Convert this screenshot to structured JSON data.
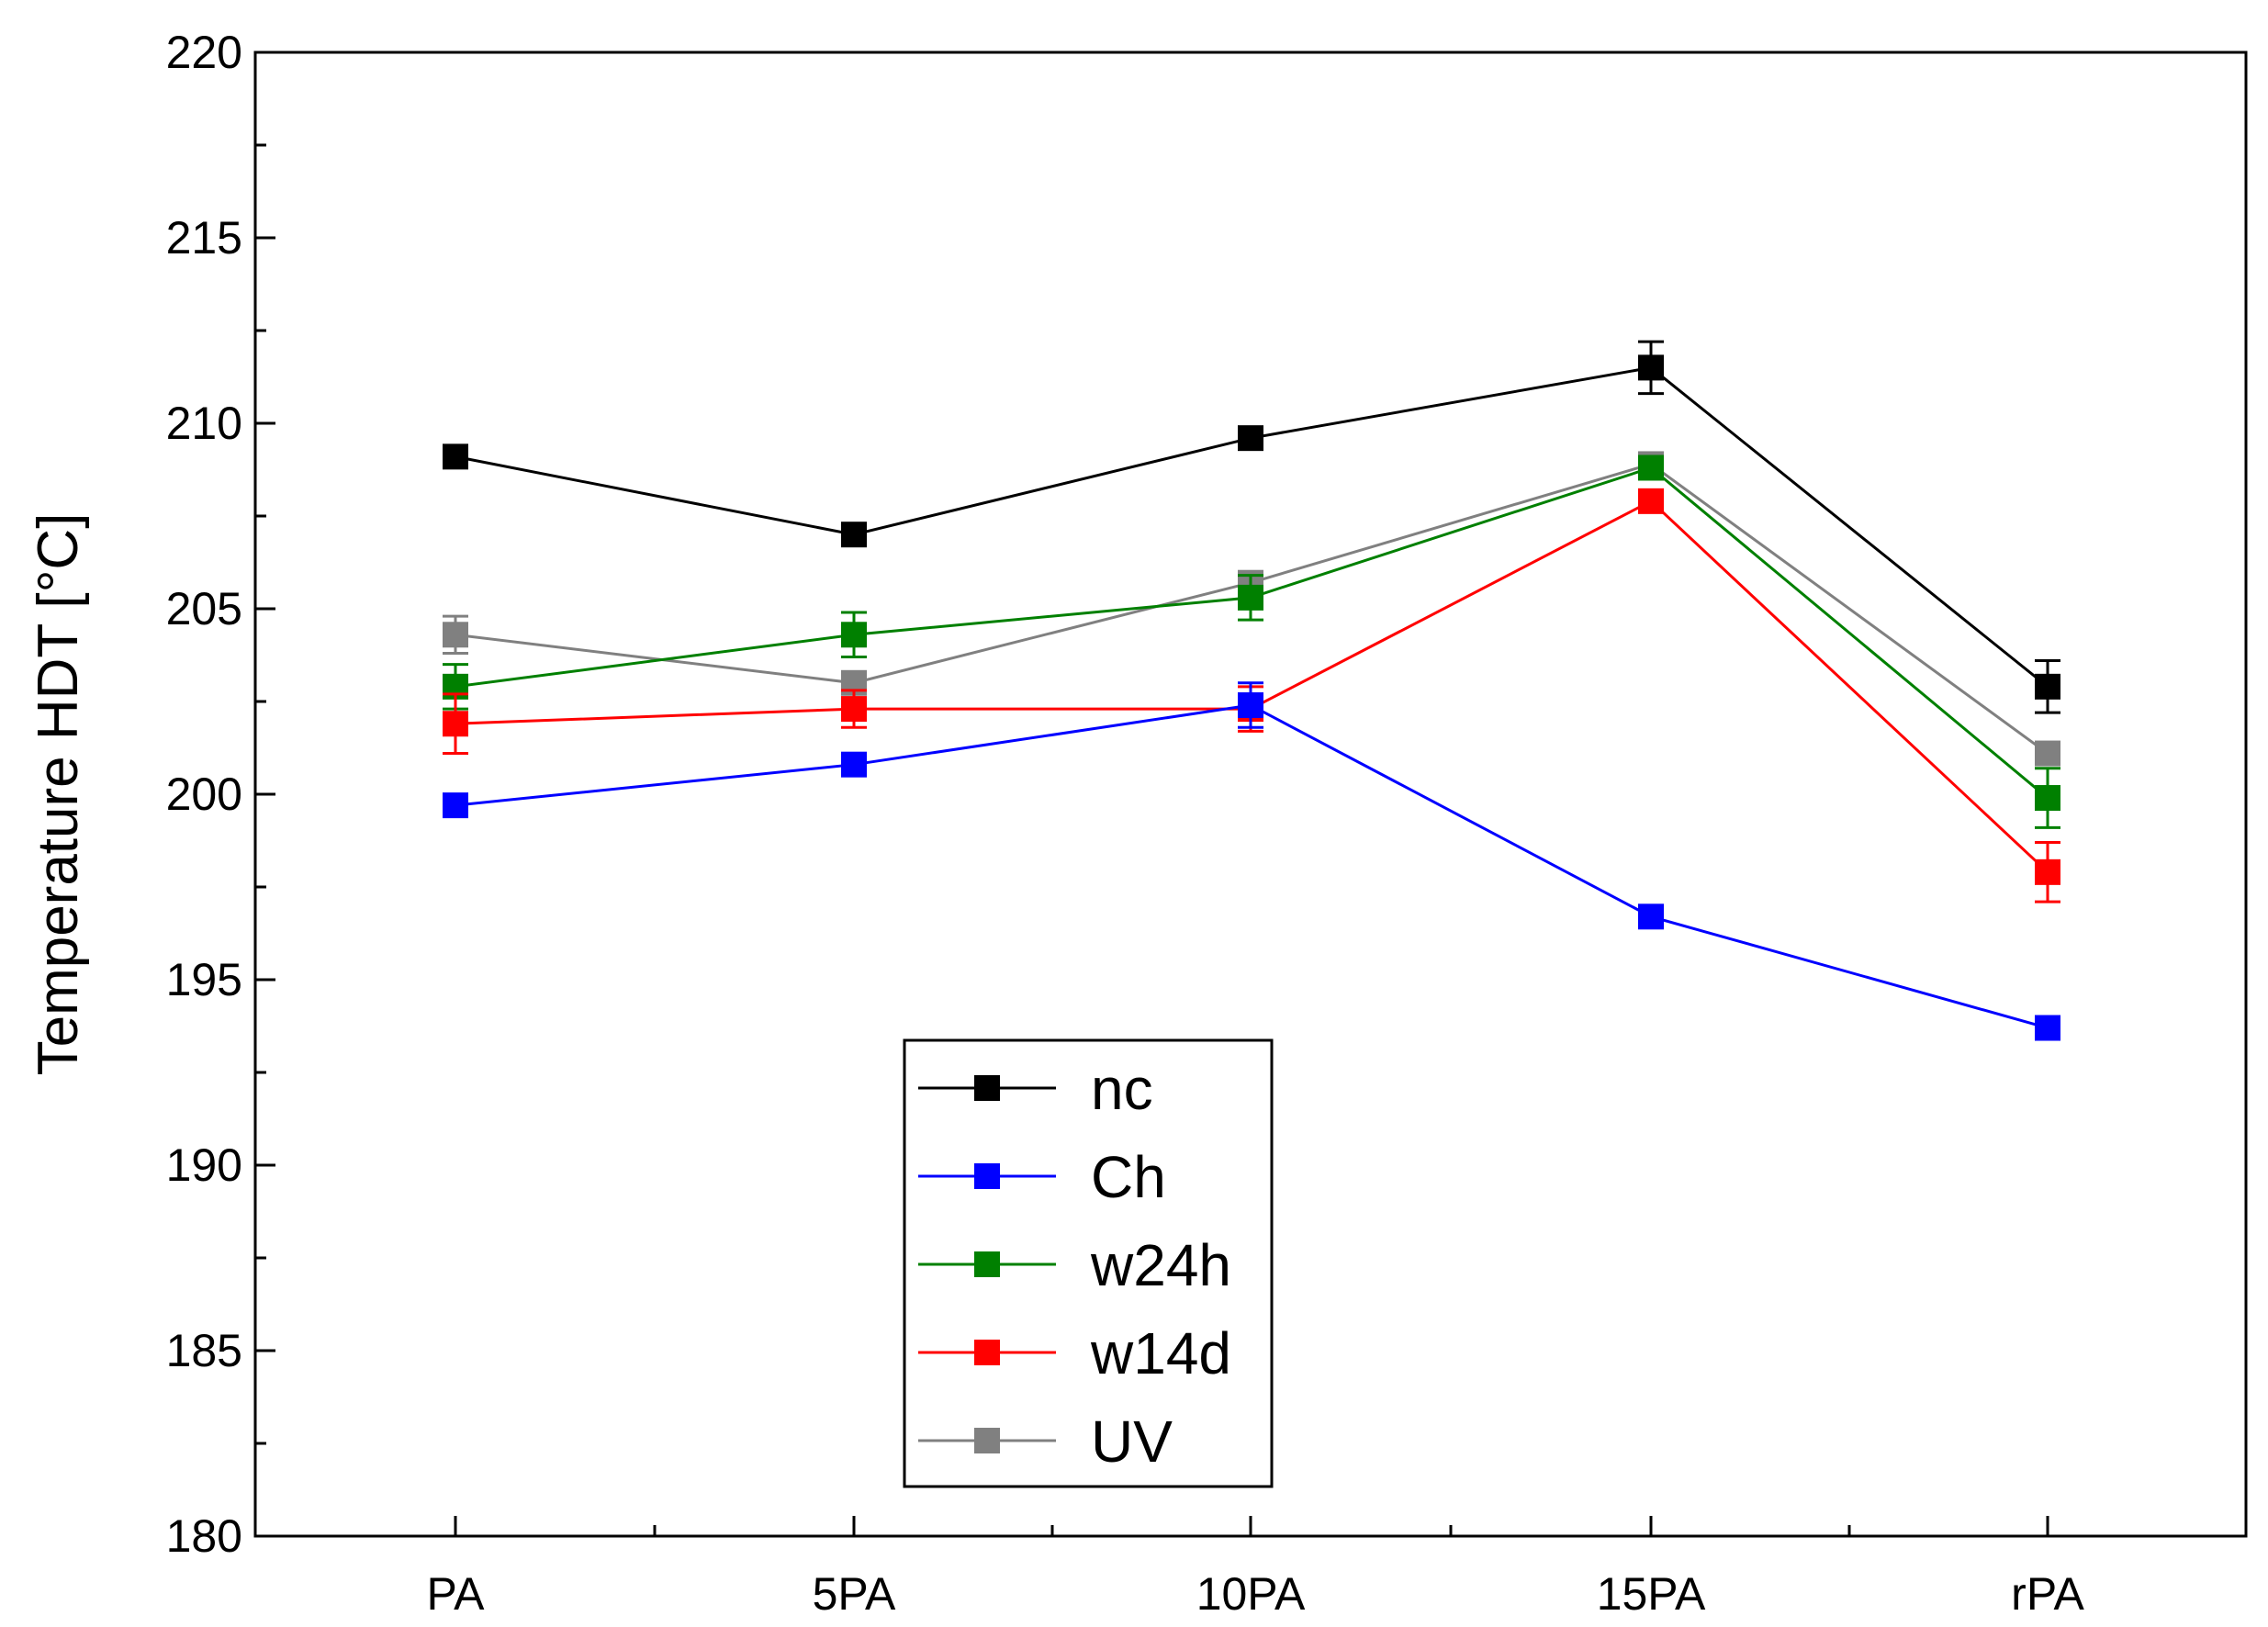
{
  "chart_data": {
    "type": "line",
    "title": "",
    "xlabel": "",
    "ylabel": "Temperature HDT [°C]",
    "categories": [
      "PA",
      "5PA",
      "10PA",
      "15PA",
      "rPA"
    ],
    "ylim": [
      180,
      220
    ],
    "yticks": [
      180,
      185,
      190,
      195,
      200,
      205,
      210,
      215,
      220
    ],
    "grid": false,
    "legend_position": "bottom-center",
    "series": [
      {
        "name": "nc",
        "color": "#000000",
        "values": [
          209.1,
          207.0,
          209.6,
          211.5,
          202.9
        ],
        "errors": [
          0.2,
          0.2,
          0.2,
          0.7,
          0.7
        ]
      },
      {
        "name": "Ch",
        "color": "#0000ff",
        "values": [
          199.7,
          200.8,
          202.4,
          196.7,
          193.7
        ],
        "errors": [
          0.2,
          0.2,
          0.6,
          0.2,
          0.2
        ]
      },
      {
        "name": "w24h",
        "color": "#008000",
        "values": [
          202.9,
          204.3,
          205.3,
          208.8,
          199.9
        ],
        "errors": [
          0.6,
          0.6,
          0.6,
          0.2,
          0.8
        ]
      },
      {
        "name": "w14d",
        "color": "#ff0000",
        "values": [
          201.9,
          202.3,
          202.3,
          207.9,
          197.9
        ],
        "errors": [
          0.8,
          0.5,
          0.6,
          0.2,
          0.8
        ]
      },
      {
        "name": "UV",
        "color": "#808080",
        "values": [
          204.3,
          203.0,
          205.7,
          208.9,
          201.1
        ],
        "errors": [
          0.5,
          0.3,
          0.3,
          0.2,
          0.3
        ]
      }
    ]
  }
}
